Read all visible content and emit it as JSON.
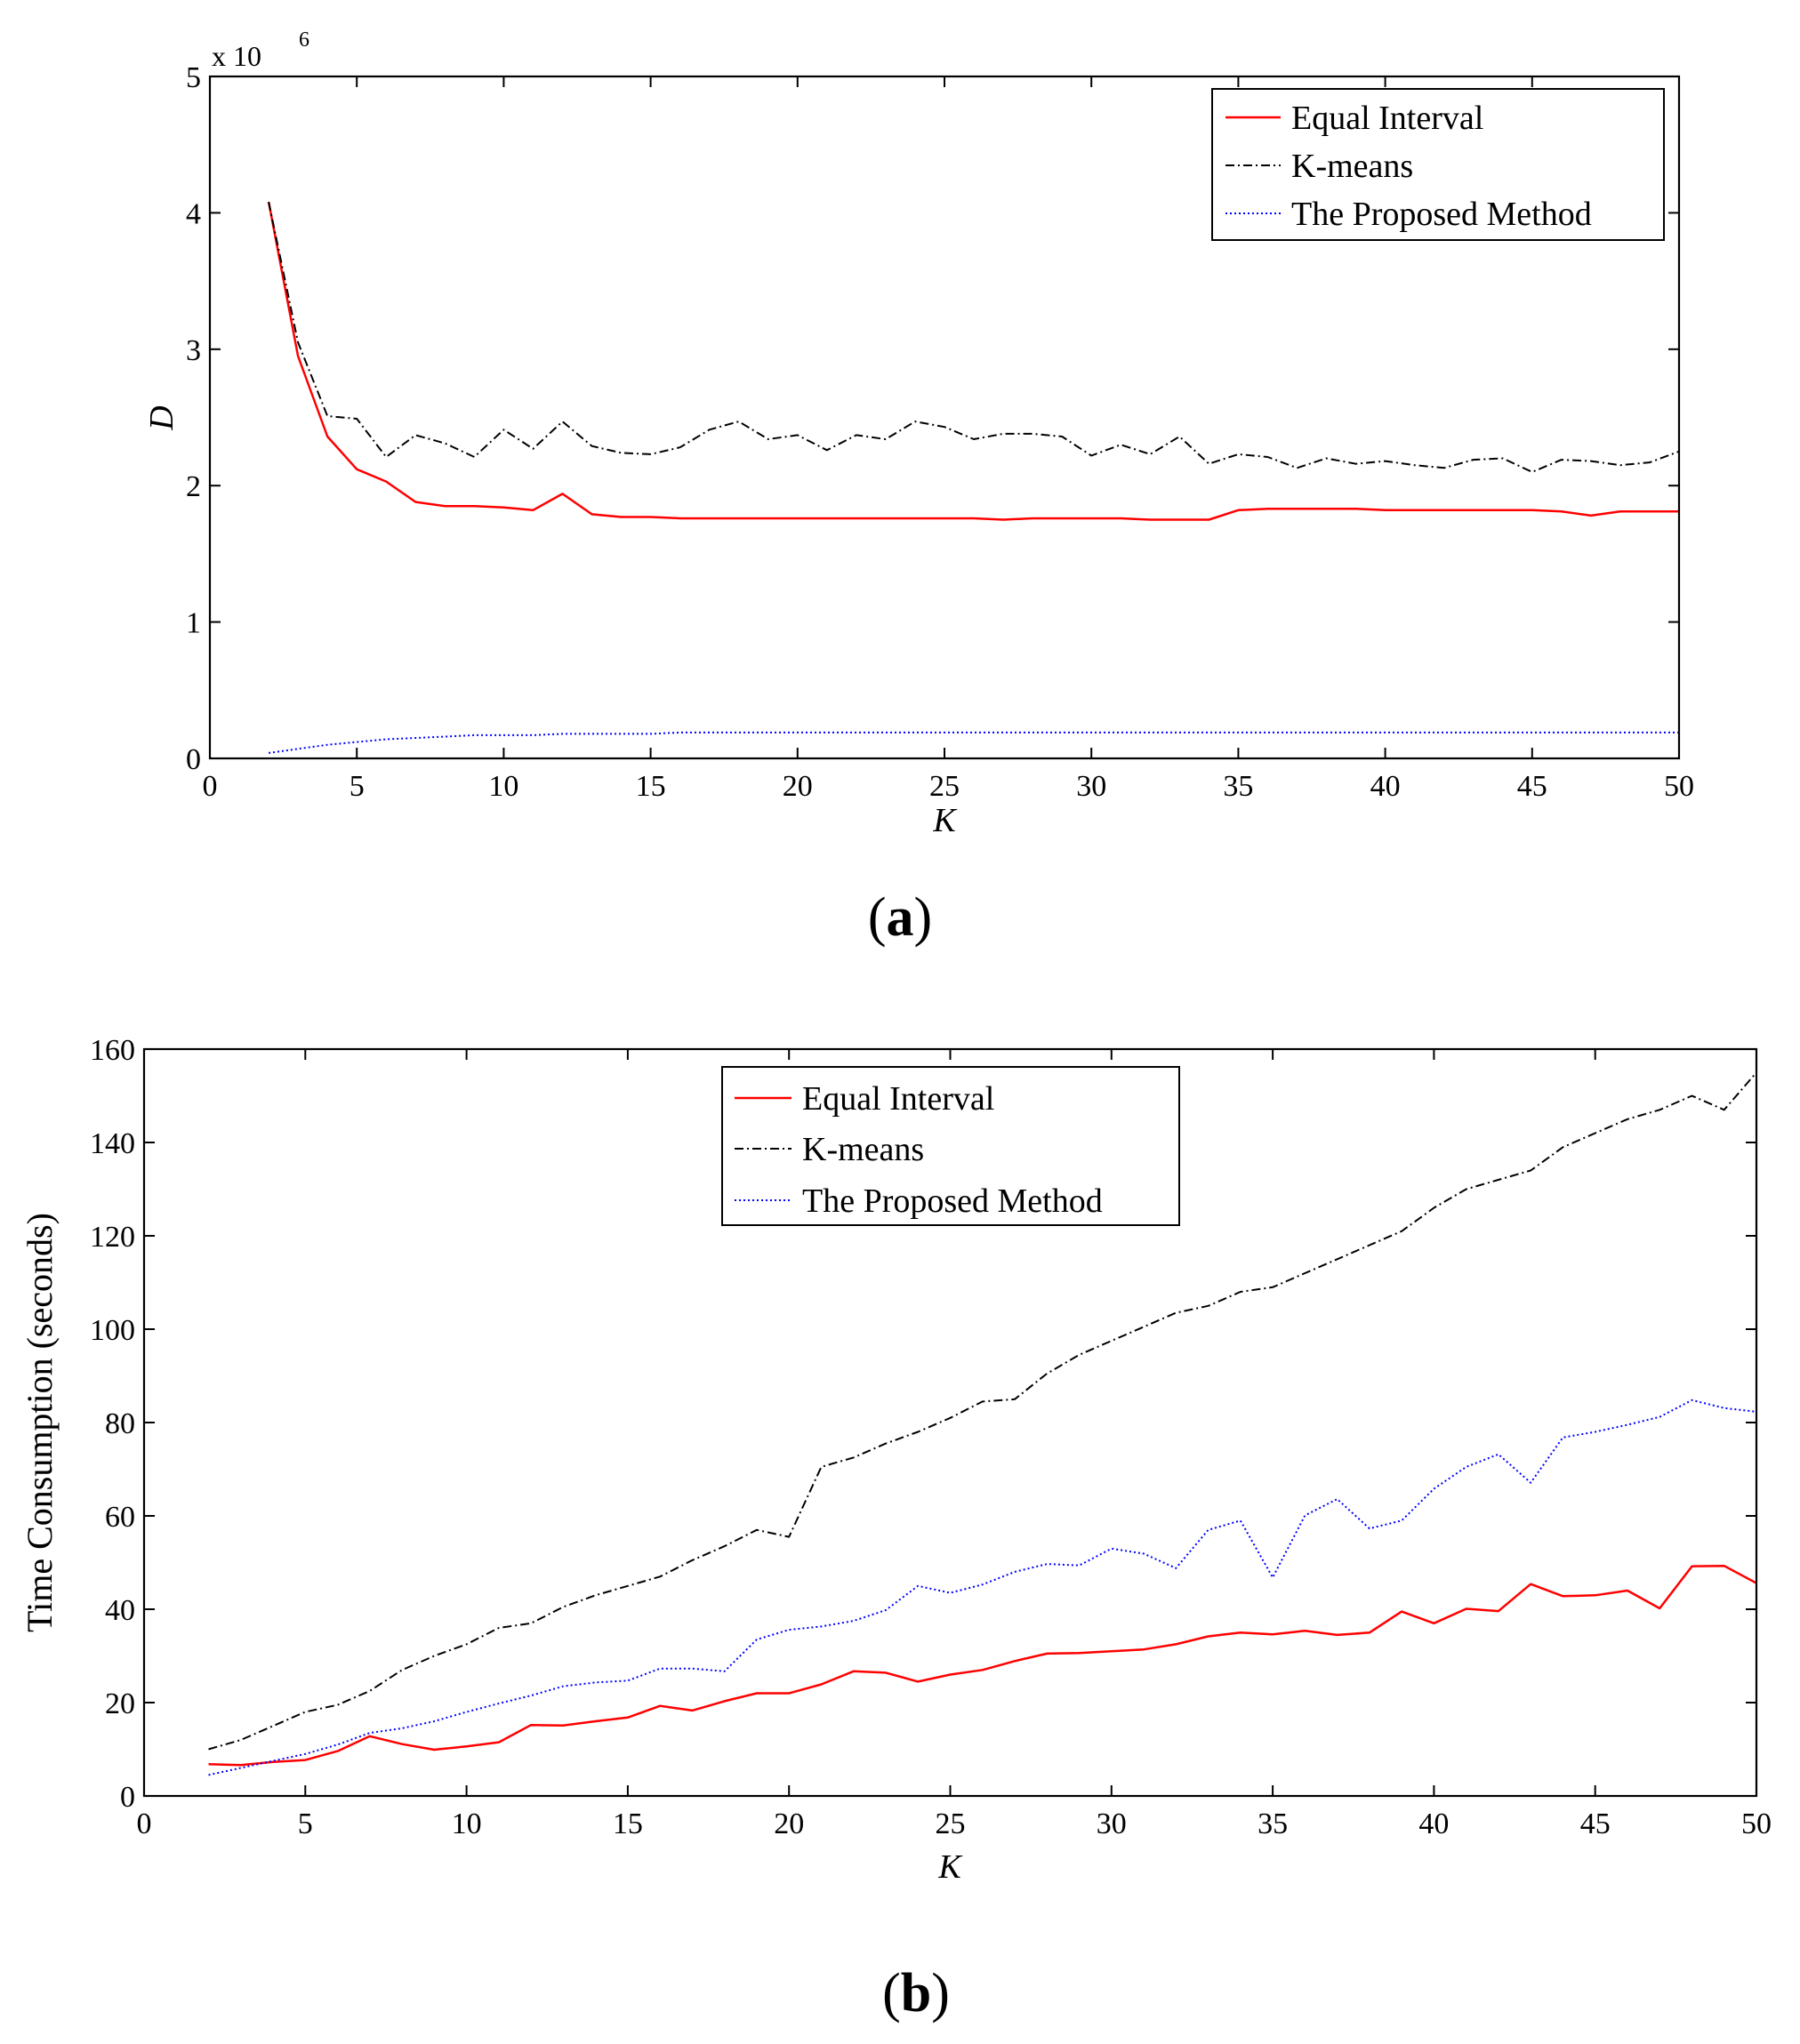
{
  "chart_data": [
    {
      "type": "line",
      "panel": "a",
      "caption_letter": "a",
      "xlabel": "K",
      "ylabel": "D",
      "y_exponent_base": "x 10",
      "y_exponent_power": "6",
      "xlim": [
        0,
        50
      ],
      "ylim": [
        0,
        5
      ],
      "xticks": [
        0,
        5,
        10,
        15,
        20,
        25,
        30,
        35,
        40,
        45,
        50
      ],
      "yticks": [
        0,
        1,
        2,
        3,
        4,
        5
      ],
      "legend_position": "top-right",
      "x": [
        2,
        3,
        4,
        5,
        6,
        7,
        8,
        9,
        10,
        11,
        12,
        13,
        14,
        15,
        16,
        17,
        18,
        19,
        20,
        21,
        22,
        23,
        24,
        25,
        26,
        27,
        28,
        29,
        30,
        31,
        32,
        33,
        34,
        35,
        36,
        37,
        38,
        39,
        40,
        41,
        42,
        43,
        44,
        45,
        46,
        47,
        48,
        49,
        50
      ],
      "series": [
        {
          "name": "Equal Interval",
          "color": "#ff0000",
          "style": "solid",
          "values": [
            4.08,
            2.95,
            2.36,
            2.12,
            2.03,
            1.88,
            1.85,
            1.85,
            1.84,
            1.82,
            1.94,
            1.79,
            1.77,
            1.77,
            1.76,
            1.76,
            1.76,
            1.76,
            1.76,
            1.76,
            1.76,
            1.76,
            1.76,
            1.76,
            1.76,
            1.75,
            1.76,
            1.76,
            1.76,
            1.76,
            1.75,
            1.75,
            1.75,
            1.82,
            1.83,
            1.83,
            1.83,
            1.83,
            1.82,
            1.82,
            1.82,
            1.82,
            1.82,
            1.82,
            1.81,
            1.78,
            1.81,
            1.81,
            1.81
          ]
        },
        {
          "name": "K-means",
          "color": "#000000",
          "style": "dashdot",
          "values": [
            4.08,
            3.05,
            2.51,
            2.49,
            2.21,
            2.37,
            2.31,
            2.21,
            2.41,
            2.27,
            2.47,
            2.29,
            2.24,
            2.23,
            2.28,
            2.41,
            2.47,
            2.34,
            2.37,
            2.26,
            2.37,
            2.34,
            2.47,
            2.43,
            2.34,
            2.38,
            2.38,
            2.36,
            2.22,
            2.3,
            2.23,
            2.36,
            2.16,
            2.23,
            2.21,
            2.13,
            2.2,
            2.16,
            2.18,
            2.15,
            2.13,
            2.19,
            2.2,
            2.1,
            2.19,
            2.18,
            2.15,
            2.17,
            2.25
          ]
        },
        {
          "name": "The Proposed Method",
          "color": "#0000ff",
          "style": "dotted",
          "values": [
            0.04,
            0.07,
            0.1,
            0.12,
            0.14,
            0.15,
            0.16,
            0.17,
            0.17,
            0.17,
            0.18,
            0.18,
            0.18,
            0.18,
            0.19,
            0.19,
            0.19,
            0.19,
            0.19,
            0.19,
            0.19,
            0.19,
            0.19,
            0.19,
            0.19,
            0.19,
            0.19,
            0.19,
            0.19,
            0.19,
            0.19,
            0.19,
            0.19,
            0.19,
            0.19,
            0.19,
            0.19,
            0.19,
            0.19,
            0.19,
            0.19,
            0.19,
            0.19,
            0.19,
            0.19,
            0.19,
            0.19,
            0.19,
            0.19
          ]
        }
      ]
    },
    {
      "type": "line",
      "panel": "b",
      "caption_letter": "b",
      "xlabel": "K",
      "ylabel": "Time Consumption (seconds)",
      "xlim": [
        0,
        50
      ],
      "ylim": [
        0,
        160
      ],
      "xticks": [
        0,
        5,
        10,
        15,
        20,
        25,
        30,
        35,
        40,
        45,
        50
      ],
      "yticks": [
        0,
        20,
        40,
        60,
        80,
        100,
        120,
        140,
        160
      ],
      "legend_position": "top-center",
      "x": [
        2,
        3,
        4,
        5,
        6,
        7,
        8,
        9,
        10,
        11,
        12,
        13,
        14,
        15,
        16,
        17,
        18,
        19,
        20,
        21,
        22,
        23,
        24,
        25,
        26,
        27,
        28,
        29,
        30,
        31,
        32,
        33,
        34,
        35,
        36,
        37,
        38,
        39,
        40,
        41,
        42,
        43,
        44,
        45,
        46,
        47,
        48,
        49,
        50
      ],
      "series": [
        {
          "name": "Equal Interval",
          "color": "#ff0000",
          "style": "solid",
          "values": [
            6.8,
            6.6,
            7.3,
            7.7,
            9.6,
            12.8,
            11.1,
            9.9,
            10.6,
            11.5,
            15.2,
            15.1,
            16.0,
            16.8,
            19.3,
            18.3,
            20.3,
            22.0,
            22.0,
            23.9,
            26.7,
            26.4,
            24.5,
            26.0,
            27.0,
            28.9,
            30.5,
            30.6,
            31.0,
            31.4,
            32.5,
            34.2,
            35.0,
            34.6,
            35.4,
            34.5,
            35.0,
            39.5,
            37.0,
            40.1,
            39.6,
            45.4,
            42.8,
            43.0,
            44.0,
            40.2,
            49.2,
            49.3,
            45.6
          ]
        },
        {
          "name": "K-means",
          "color": "#000000",
          "style": "dashdot",
          "values": [
            10.0,
            12.0,
            15.0,
            18.0,
            19.5,
            22.5,
            27.0,
            30.0,
            32.5,
            36.0,
            37.0,
            40.5,
            43.0,
            45.0,
            47.0,
            50.5,
            53.5,
            57.0,
            55.5,
            70.5,
            72.5,
            75.5,
            78.0,
            81.0,
            84.5,
            85.0,
            90.5,
            94.5,
            97.5,
            100.5,
            103.5,
            105.0,
            108.0,
            109.0,
            112.0,
            115.0,
            118.0,
            121.0,
            126.0,
            130.0,
            132.0,
            134.0,
            139.0,
            142.0,
            145.0,
            147.0,
            150.0,
            147.0,
            155.0
          ]
        },
        {
          "name": "The Proposed Method",
          "color": "#0000ff",
          "style": "dotted",
          "values": [
            4.5,
            6.0,
            7.5,
            9.0,
            11.0,
            13.5,
            14.5,
            16.0,
            18.0,
            19.8,
            21.5,
            23.5,
            24.3,
            24.7,
            27.3,
            27.3,
            26.7,
            33.5,
            35.6,
            36.3,
            37.5,
            39.8,
            45.0,
            43.5,
            45.3,
            48.0,
            49.7,
            49.4,
            53.0,
            51.9,
            48.8,
            57.0,
            59.0,
            46.8,
            60.1,
            63.6,
            57.3,
            59.0,
            65.8,
            70.5,
            73.2,
            67.1,
            76.8,
            78.0,
            79.5,
            81.2,
            84.8,
            83.1,
            82.3
          ]
        }
      ]
    }
  ]
}
